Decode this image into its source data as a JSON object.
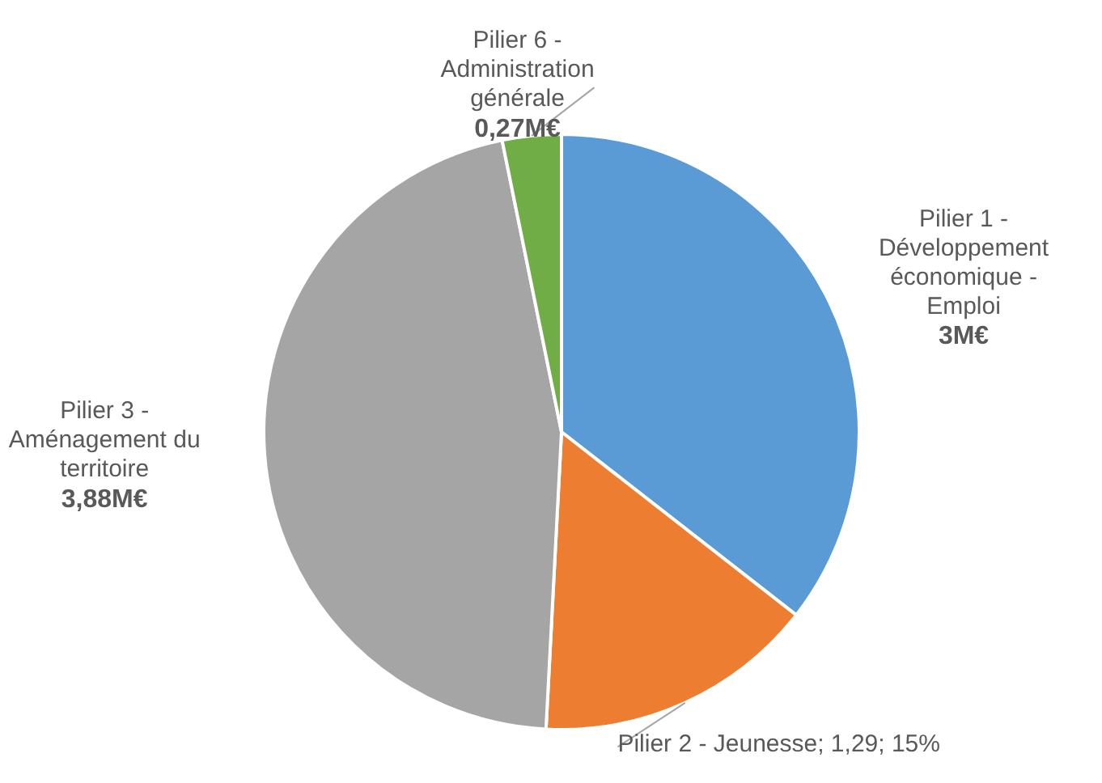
{
  "chart_data": {
    "type": "pie",
    "categories": [
      "Pilier 1 - Développement économique - Emploi",
      "Pilier 2 - Jeunesse",
      "Pilier 3 - Aménagement du territoire",
      "Pilier 6 - Administration générale"
    ],
    "values": [
      3,
      1.29,
      3.88,
      0.27
    ],
    "colors": [
      "#5b9bd5",
      "#ed7d31",
      "#a5a5a5",
      "#70ad47"
    ],
    "value_labels": [
      "3M€",
      "1,29; 15%",
      "3,88M€",
      "0,27M€"
    ],
    "legend": false
  }
}
